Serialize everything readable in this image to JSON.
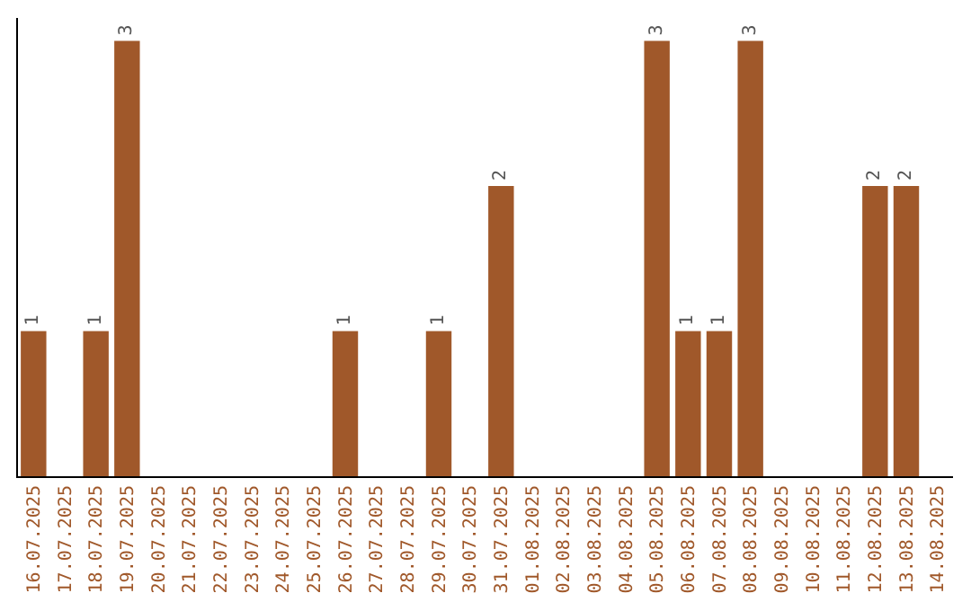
{
  "chart_data": {
    "type": "bar",
    "categories": [
      "16.07.2025",
      "17.07.2025",
      "18.07.2025",
      "19.07.2025",
      "20.07.2025",
      "21.07.2025",
      "22.07.2025",
      "23.07.2025",
      "24.07.2025",
      "25.07.2025",
      "26.07.2025",
      "27.07.2025",
      "28.07.2025",
      "29.07.2025",
      "30.07.2025",
      "31.07.2025",
      "01.08.2025",
      "02.08.2025",
      "03.08.2025",
      "04.08.2025",
      "05.08.2025",
      "06.08.2025",
      "07.08.2025",
      "08.08.2025",
      "09.08.2025",
      "10.08.2025",
      "11.08.2025",
      "12.08.2025",
      "13.08.2025",
      "14.08.2025"
    ],
    "values": [
      1,
      0,
      1,
      3,
      0,
      0,
      0,
      0,
      0,
      0,
      1,
      0,
      0,
      1,
      0,
      2,
      0,
      0,
      0,
      0,
      3,
      1,
      1,
      3,
      0,
      0,
      0,
      2,
      2,
      0
    ],
    "value_labels": [
      "1",
      null,
      "1",
      "3",
      null,
      null,
      null,
      null,
      null,
      null,
      "1",
      null,
      null,
      "1",
      null,
      "2",
      null,
      null,
      null,
      null,
      "3",
      "1",
      "1",
      "3",
      null,
      null,
      null,
      "2",
      "2",
      null
    ],
    "color": "#a0582a",
    "legend": false,
    "tick_labels": "x"
  }
}
